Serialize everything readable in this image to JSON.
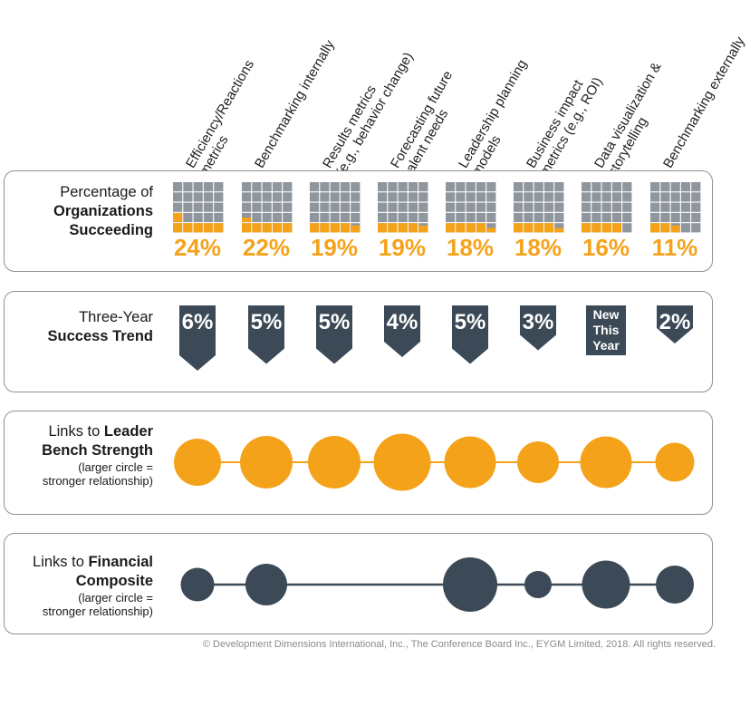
{
  "columns": [
    {
      "lines": [
        "Efficiency/Reactions",
        "metrics"
      ]
    },
    {
      "lines": [
        "Benchmarking internally"
      ]
    },
    {
      "lines": [
        "Results metrics",
        "(e.g., behavior change)"
      ]
    },
    {
      "lines": [
        "Forecasting future",
        "talent needs"
      ]
    },
    {
      "lines": [
        "Leadership planning",
        "models"
      ]
    },
    {
      "lines": [
        "Business impact",
        "metrics (e.g., ROI)"
      ]
    },
    {
      "lines": [
        "Data visualization &",
        "storytelling"
      ]
    },
    {
      "lines": [
        "Benchmarking externally"
      ]
    }
  ],
  "rows": {
    "success": {
      "label_line1": "Percentage of",
      "label_line2": "Organizations",
      "label_line3": "Succeeding"
    },
    "trend": {
      "label_line1": "Three-Year",
      "label_line2": "Success Trend"
    },
    "bench": {
      "label_prefix": "Links to ",
      "label_bold1": "Leader",
      "label_bold2": "Bench Strength",
      "note1": "(larger circle =",
      "note2": "stronger relationship)"
    },
    "financial": {
      "label_prefix": "Links to ",
      "label_bold1": "Financial",
      "label_bold2": "Composite",
      "note1": "(larger circle =",
      "note2": "stronger relationship)"
    }
  },
  "chart_data": {
    "type": "table",
    "success_percent": [
      24,
      22,
      19,
      19,
      18,
      18,
      16,
      11
    ],
    "success_labels": [
      "24%",
      "22%",
      "19%",
      "19%",
      "18%",
      "18%",
      "16%",
      "11%"
    ],
    "trend_labels": [
      [
        "6%"
      ],
      [
        "5%"
      ],
      [
        "5%"
      ],
      [
        "4%"
      ],
      [
        "5%"
      ],
      [
        "3%"
      ],
      [
        "New",
        "This",
        "Year"
      ],
      [
        "2%"
      ]
    ],
    "trend_values": [
      6,
      5,
      5,
      4,
      5,
      3,
      null,
      2
    ],
    "bench_strength_relative": [
      0.52,
      0.58,
      0.58,
      0.63,
      0.57,
      0.46,
      0.57,
      0.43
    ],
    "financial_relative": [
      0.37,
      0.46,
      null,
      null,
      0.6,
      0.3,
      0.53,
      0.42
    ],
    "colors": {
      "orange": "#f5a21b",
      "grid_gray": "#8f969d",
      "dark": "#3c4a57",
      "border": "#8c9196"
    }
  },
  "footer": "© Development Dimensions International, Inc., The Conference Board Inc., EYGM Limited, 2018. All rights reserved."
}
